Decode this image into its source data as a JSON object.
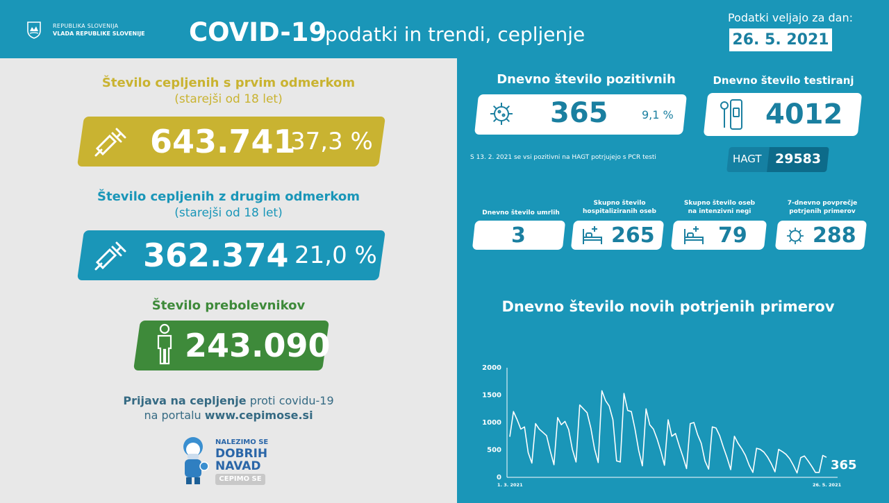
{
  "header": {
    "gov_line1": "REPUBLIKA SLOVENIJA",
    "gov_line2": "VLADA REPUBLIKE SLOVENIJE",
    "title": "COVID-19",
    "subtitle": "podatki in trendi, cepljenje",
    "date_label": "Podatki veljajo za dan:",
    "date": "26. 5. 2021"
  },
  "vaccination": {
    "first_dose": {
      "title": "Število cepljenih s prvim odmerkom",
      "note": "(starejši od 18 let)",
      "value": "643.741",
      "percent": "37,3 %",
      "color": "#c9b331",
      "icon": "syringe-icon"
    },
    "second_dose": {
      "title": "Število cepljenih z drugim odmerkom",
      "note": "(starejši od 18 let)",
      "value": "362.374",
      "percent": "21,0 %",
      "color": "#1a96b8",
      "icon": "syringe-icon"
    },
    "recovered": {
      "title": "Število prebolevnikov",
      "value": "243.090",
      "color": "#3e8a3a",
      "icon": "person-icon"
    }
  },
  "registration": {
    "line1_bold": "Prijava na cepljenje",
    "line1_rest": " proti covidu-19",
    "line2_rest": "na portalu ",
    "line2_bold": "www.cepimose.si"
  },
  "campaign": {
    "line1": "NALEZIMO SE",
    "line2": "DOBRIH",
    "line3": "NAVAD",
    "badge": "CEPIMO SE"
  },
  "stats": {
    "positive": {
      "label": "Dnevno število pozitivnih",
      "value": "365",
      "percent": "9,1 %",
      "icon": "virus-icon"
    },
    "tests": {
      "label": "Dnevno število testiranj",
      "value": "4012",
      "icon": "test-tube-icon"
    },
    "note": "S 13. 2. 2021 se vsi pozitivni na HAGT potrjujejo s PCR testi",
    "hagt": {
      "label": "HAGT",
      "value": "29583"
    },
    "deaths": {
      "label": "Dnevno število umrlih",
      "value": "3"
    },
    "hospitalized": {
      "label1": "Skupno število",
      "label2": "hospitaliziranih oseb",
      "value": "265",
      "icon": "hospital-bed-icon"
    },
    "icu": {
      "label1": "Skupno število oseb",
      "label2": "na intenzivni negi",
      "value": "79",
      "icon": "hospital-bed-icon"
    },
    "avg7": {
      "label1": "7-dnevno povprečje",
      "label2": "potrjenih primerov",
      "value": "288",
      "icon": "virus-icon"
    }
  },
  "chart_data": {
    "type": "line",
    "title": "Dnevno število novih potrjenih primerov",
    "x_start_label": "1. 3. 2021",
    "x_end_label": "26. 5. 2021",
    "ylim": [
      0,
      2000
    ],
    "yticks": [
      "0",
      "500",
      "1000",
      "1500",
      "2000"
    ],
    "last_value_label": "365",
    "series": [
      {
        "values": [
          740,
          1200,
          1050,
          880,
          920,
          450,
          260,
          980,
          880,
          820,
          760,
          480,
          230,
          1090,
          960,
          1020,
          870,
          510,
          280,
          1320,
          1250,
          1180,
          900,
          520,
          270,
          1580,
          1400,
          1300,
          1050,
          300,
          280,
          1530,
          1220,
          1200,
          880,
          490,
          210,
          1250,
          960,
          880,
          700,
          480,
          220,
          1050,
          750,
          800,
          580,
          380,
          160,
          980,
          1000,
          780,
          620,
          300,
          150,
          920,
          900,
          760,
          550,
          360,
          140,
          750,
          620,
          520,
          400,
          220,
          90,
          530,
          510,
          460,
          370,
          250,
          100,
          510,
          470,
          420,
          340,
          220,
          80,
          360,
          390,
          300,
          200,
          90,
          90,
          400,
          365
        ]
      }
    ]
  }
}
